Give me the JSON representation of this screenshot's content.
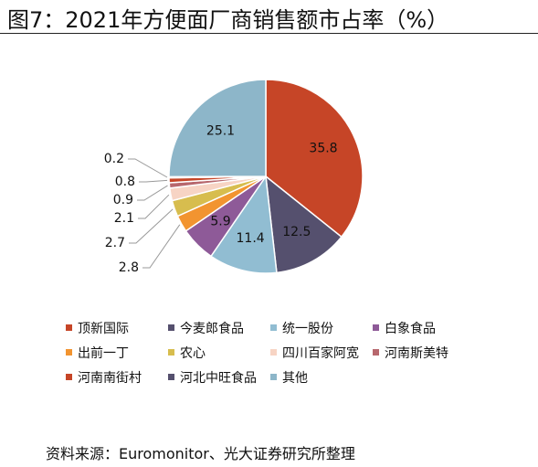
{
  "title": "图7：2021年方便面厂商销售额市占率（%）",
  "source": "资料来源：Euromonitor、光大证券研究所整理",
  "chart_data": {
    "type": "pie",
    "title": "图7：2021年方便面厂商销售额市占率（%）",
    "slices": [
      {
        "name": "顶新国际",
        "value": 35.8,
        "color": "#c64527"
      },
      {
        "name": "今麦郎食品",
        "value": 12.5,
        "color": "#55506e"
      },
      {
        "name": "统一股份",
        "value": 11.4,
        "color": "#91bdd2"
      },
      {
        "name": "白象食品",
        "value": 5.9,
        "color": "#8e5a98"
      },
      {
        "name": "出前一丁",
        "value": 2.8,
        "color": "#f29430"
      },
      {
        "name": "农心",
        "value": 2.7,
        "color": "#d7bd4e"
      },
      {
        "name": "四川百家阿宽",
        "value": 2.1,
        "color": "#f7d4c4"
      },
      {
        "name": "河南斯美特",
        "value": 0.9,
        "color": "#b7676d"
      },
      {
        "name": "河南南街村",
        "value": 0.8,
        "color": "#c64527"
      },
      {
        "name": "河北中旺食品",
        "value": 0.2,
        "color": "#55506e"
      },
      {
        "name": "其他",
        "value": 25.1,
        "color": "#8db6c9"
      }
    ],
    "legend_position": "bottom"
  }
}
